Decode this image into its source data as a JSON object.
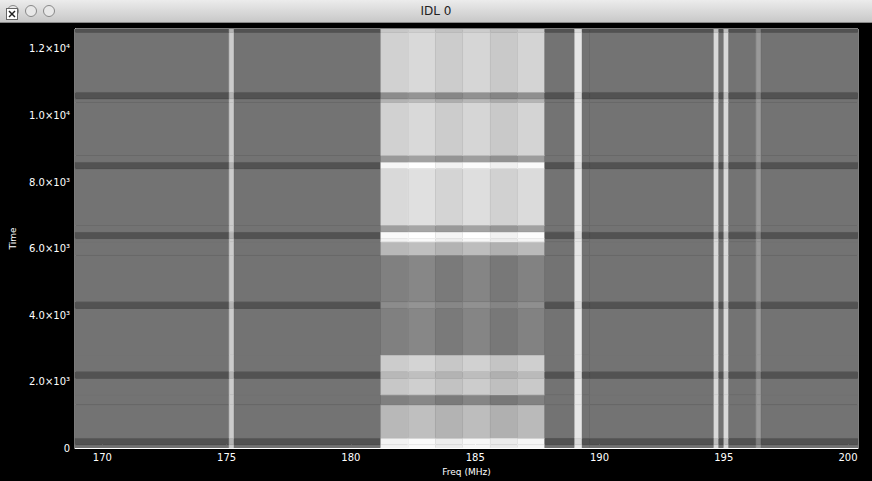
{
  "window": {
    "title": "IDL 0"
  },
  "chart_data": {
    "type": "heatmap",
    "x_label": "Freq (MHz)",
    "y_label": "Time",
    "xlim": [
      168.9,
      200.4
    ],
    "xticks": [
      170,
      175,
      180,
      185,
      190,
      195,
      200
    ],
    "ylim": [
      0,
      12600
    ],
    "yticks": [
      0,
      {
        "value": 2000,
        "label": "2.0×10³"
      },
      {
        "value": 4000,
        "label": "4.0×10³"
      },
      {
        "value": 6000,
        "label": "6.0×10³"
      },
      {
        "value": 8000,
        "label": "8.0×10³"
      },
      {
        "value": 10000,
        "label": "1.0×10⁴"
      },
      {
        "value": 12000,
        "label": "1.2×10⁴"
      }
    ],
    "grid": false,
    "zlim": [
      0,
      1
    ],
    "x_edges": [
      168.9,
      175.1,
      175.3,
      181.2,
      182.3,
      183.4,
      184.5,
      185.6,
      186.7,
      187.8,
      189.0,
      189.3,
      189.6,
      194.6,
      194.8,
      195.0,
      195.2,
      196.3,
      196.5,
      200.4
    ],
    "y_edges": [
      0,
      100,
      300,
      1300,
      1600,
      2100,
      2300,
      2800,
      4200,
      4400,
      5800,
      6200,
      6300,
      6500,
      6700,
      8400,
      8600,
      8800,
      10400,
      10500,
      10700,
      12500,
      12600
    ],
    "cells": [
      [
        0.45,
        0.8,
        0.45,
        0.95,
        0.98,
        0.93,
        0.97,
        0.92,
        0.96,
        0.45,
        0.9,
        0.45,
        0.45,
        0.85,
        0.45,
        0.85,
        0.45,
        0.6,
        0.45
      ],
      [
        0.32,
        0.7,
        0.32,
        0.95,
        0.98,
        0.93,
        0.97,
        0.92,
        0.96,
        0.32,
        0.85,
        0.32,
        0.32,
        0.75,
        0.32,
        0.75,
        0.32,
        0.5,
        0.32
      ],
      [
        0.45,
        0.8,
        0.45,
        0.72,
        0.75,
        0.7,
        0.74,
        0.69,
        0.73,
        0.45,
        0.9,
        0.45,
        0.45,
        0.85,
        0.45,
        0.85,
        0.45,
        0.6,
        0.45
      ],
      [
        0.45,
        0.8,
        0.45,
        0.5,
        0.53,
        0.48,
        0.52,
        0.47,
        0.51,
        0.45,
        0.9,
        0.45,
        0.45,
        0.85,
        0.45,
        0.85,
        0.45,
        0.6,
        0.45
      ],
      [
        0.45,
        0.8,
        0.45,
        0.78,
        0.81,
        0.76,
        0.8,
        0.75,
        0.79,
        0.45,
        0.9,
        0.45,
        0.45,
        0.85,
        0.45,
        0.85,
        0.45,
        0.6,
        0.45
      ],
      [
        0.32,
        0.7,
        0.32,
        0.72,
        0.75,
        0.7,
        0.74,
        0.69,
        0.73,
        0.32,
        0.85,
        0.32,
        0.32,
        0.75,
        0.32,
        0.75,
        0.32,
        0.5,
        0.32
      ],
      [
        0.45,
        0.8,
        0.45,
        0.8,
        0.83,
        0.78,
        0.82,
        0.77,
        0.81,
        0.45,
        0.9,
        0.45,
        0.45,
        0.85,
        0.45,
        0.85,
        0.45,
        0.6,
        0.45
      ],
      [
        0.45,
        0.8,
        0.45,
        0.5,
        0.53,
        0.48,
        0.52,
        0.47,
        0.51,
        0.45,
        0.9,
        0.45,
        0.45,
        0.85,
        0.45,
        0.85,
        0.45,
        0.6,
        0.45
      ],
      [
        0.32,
        0.7,
        0.32,
        0.55,
        0.58,
        0.53,
        0.57,
        0.52,
        0.56,
        0.32,
        0.85,
        0.32,
        0.32,
        0.75,
        0.32,
        0.75,
        0.32,
        0.5,
        0.32
      ],
      [
        0.45,
        0.8,
        0.45,
        0.5,
        0.53,
        0.48,
        0.52,
        0.47,
        0.51,
        0.45,
        0.9,
        0.45,
        0.45,
        0.85,
        0.45,
        0.85,
        0.45,
        0.6,
        0.45
      ],
      [
        0.45,
        0.8,
        0.45,
        0.72,
        0.75,
        0.7,
        0.74,
        0.69,
        0.73,
        0.45,
        0.9,
        0.45,
        0.45,
        0.85,
        0.45,
        0.85,
        0.45,
        0.6,
        0.45
      ],
      [
        0.45,
        0.8,
        0.45,
        0.95,
        0.98,
        0.93,
        0.97,
        0.92,
        0.96,
        0.45,
        0.9,
        0.45,
        0.45,
        0.85,
        0.45,
        0.85,
        0.45,
        0.6,
        0.45
      ],
      [
        0.32,
        0.7,
        0.32,
        0.98,
        1.0,
        0.96,
        1.0,
        0.95,
        0.99,
        0.32,
        0.85,
        0.32,
        0.32,
        0.75,
        0.32,
        0.75,
        0.32,
        0.5,
        0.32
      ],
      [
        0.45,
        0.8,
        0.45,
        0.62,
        0.65,
        0.6,
        0.64,
        0.59,
        0.63,
        0.45,
        0.9,
        0.45,
        0.45,
        0.85,
        0.45,
        0.85,
        0.45,
        0.6,
        0.45
      ],
      [
        0.45,
        0.8,
        0.45,
        0.85,
        0.88,
        0.83,
        0.87,
        0.82,
        0.86,
        0.45,
        0.9,
        0.45,
        0.45,
        0.85,
        0.45,
        0.85,
        0.45,
        0.6,
        0.45
      ],
      [
        0.32,
        0.7,
        0.32,
        0.97,
        1.0,
        0.95,
        0.99,
        0.94,
        0.98,
        0.32,
        0.85,
        0.32,
        0.32,
        0.75,
        0.32,
        0.75,
        0.32,
        0.5,
        0.32
      ],
      [
        0.45,
        0.8,
        0.45,
        0.6,
        0.63,
        0.58,
        0.62,
        0.57,
        0.61,
        0.45,
        0.9,
        0.45,
        0.45,
        0.85,
        0.45,
        0.85,
        0.45,
        0.6,
        0.45
      ],
      [
        0.45,
        0.8,
        0.45,
        0.82,
        0.85,
        0.8,
        0.84,
        0.79,
        0.83,
        0.45,
        0.9,
        0.45,
        0.45,
        0.85,
        0.45,
        0.85,
        0.45,
        0.6,
        0.45
      ],
      [
        0.45,
        0.8,
        0.45,
        0.7,
        0.73,
        0.68,
        0.72,
        0.67,
        0.71,
        0.45,
        0.9,
        0.45,
        0.45,
        0.85,
        0.45,
        0.85,
        0.45,
        0.6,
        0.45
      ],
      [
        0.32,
        0.7,
        0.32,
        0.55,
        0.58,
        0.53,
        0.57,
        0.52,
        0.56,
        0.32,
        0.85,
        0.32,
        0.32,
        0.75,
        0.32,
        0.75,
        0.32,
        0.5,
        0.32
      ],
      [
        0.45,
        0.8,
        0.45,
        0.82,
        0.85,
        0.8,
        0.84,
        0.79,
        0.83,
        0.45,
        0.9,
        0.45,
        0.45,
        0.85,
        0.45,
        0.85,
        0.45,
        0.6,
        0.45
      ],
      [
        0.32,
        0.7,
        0.32,
        0.78,
        0.81,
        0.76,
        0.8,
        0.75,
        0.79,
        0.32,
        0.85,
        0.32,
        0.32,
        0.75,
        0.32,
        0.75,
        0.32,
        0.5,
        0.32
      ]
    ]
  }
}
